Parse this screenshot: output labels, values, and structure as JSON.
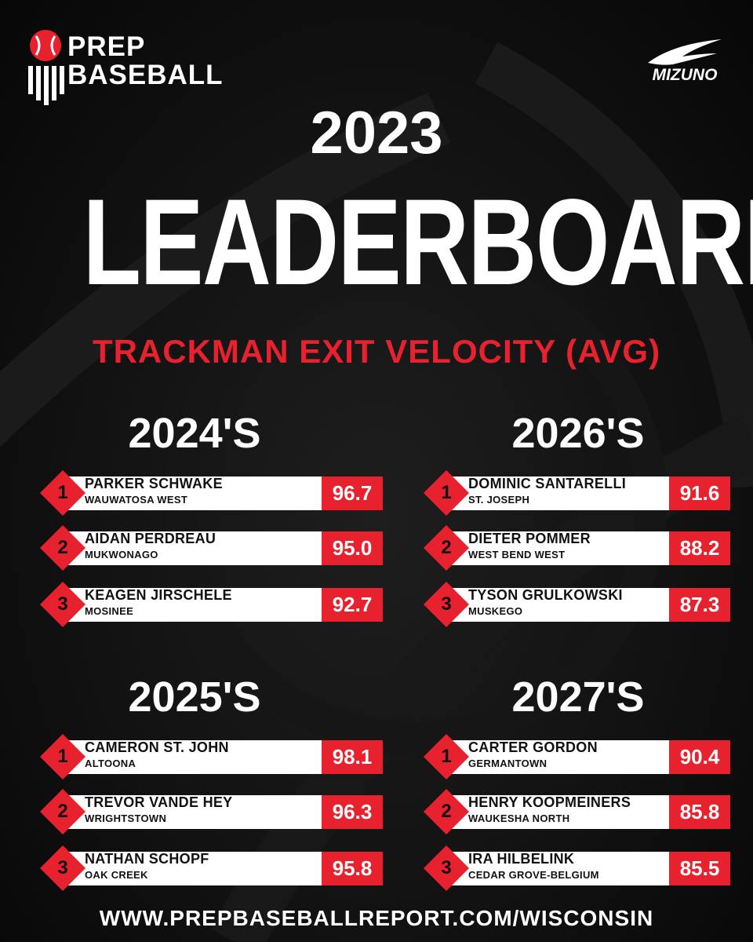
{
  "brand": {
    "logo_line1": "PREP",
    "logo_line2": "BASEBALL",
    "sponsor": "MIZUNO"
  },
  "header": {
    "year": "2023",
    "title": "LEADERBOARD",
    "metric": "TRACKMAN EXIT VELOCITY (AVG)"
  },
  "colors": {
    "accent": "#e8212f",
    "background": "#111111",
    "text": "#ffffff"
  },
  "sections": [
    {
      "title": "2024'S",
      "entries": [
        {
          "rank": "1",
          "name": "PARKER SCHWAKE",
          "school": "WAUWATOSA WEST",
          "value": "96.7"
        },
        {
          "rank": "2",
          "name": "AIDAN PERDREAU",
          "school": "MUKWONAGO",
          "value": "95.0"
        },
        {
          "rank": "3",
          "name": "KEAGEN JIRSCHELE",
          "school": "MOSINEE",
          "value": "92.7"
        }
      ]
    },
    {
      "title": "2026'S",
      "entries": [
        {
          "rank": "1",
          "name": "DOMINIC SANTARELLI",
          "school": "ST. JOSEPH",
          "value": "91.6"
        },
        {
          "rank": "2",
          "name": "DIETER POMMER",
          "school": "WEST BEND WEST",
          "value": "88.2"
        },
        {
          "rank": "3",
          "name": "TYSON GRULKOWSKI",
          "school": "MUSKEGO",
          "value": "87.3"
        }
      ]
    },
    {
      "title": "2025'S",
      "entries": [
        {
          "rank": "1",
          "name": "CAMERON ST. JOHN",
          "school": "ALTOONA",
          "value": "98.1"
        },
        {
          "rank": "2",
          "name": "TREVOR VANDE HEY",
          "school": "WRIGHTSTOWN",
          "value": "96.3"
        },
        {
          "rank": "3",
          "name": "NATHAN SCHOPF",
          "school": "OAK CREEK",
          "value": "95.8"
        }
      ]
    },
    {
      "title": "2027'S",
      "entries": [
        {
          "rank": "1",
          "name": "CARTER GORDON",
          "school": "GERMANTOWN",
          "value": "90.4"
        },
        {
          "rank": "2",
          "name": "HENRY KOOPMEINERS",
          "school": "WAUKESHA NORTH",
          "value": "85.8"
        },
        {
          "rank": "3",
          "name": "IRA HILBELINK",
          "school": "CEDAR GROVE-BELGIUM",
          "value": "85.5"
        }
      ]
    }
  ],
  "footer": {
    "url": "WWW.PREPBASEBALLREPORT.COM/WISCONSIN"
  }
}
